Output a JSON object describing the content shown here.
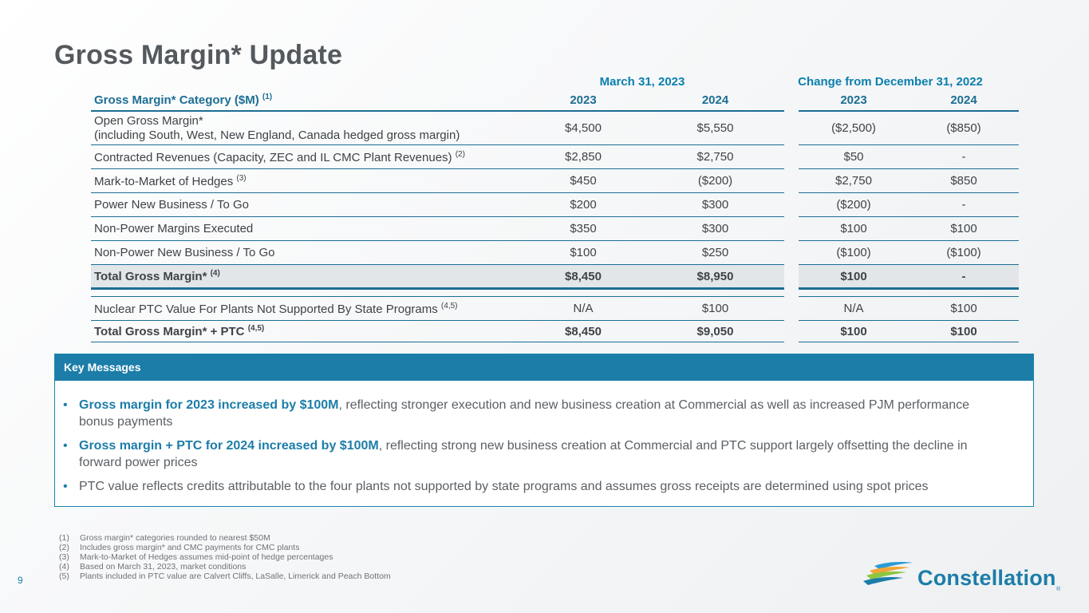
{
  "page": {
    "title": "Gross Margin* Update",
    "page_number": "9"
  },
  "table": {
    "group_headers": {
      "march": "March 31, 2023",
      "change": "Change from December 31, 2022"
    },
    "header": {
      "category": "Gross Margin* Category ($M)",
      "category_sup": "(1)",
      "y1": "2023",
      "y2": "2024",
      "y3": "2023",
      "y4": "2024"
    },
    "rows": [
      {
        "label": "Open Gross Margin*",
        "label2": "(including South, West, New England, Canada hedged gross margin)",
        "sup": "",
        "v1": "$4,500",
        "v2": "$5,550",
        "v3": "($2,500)",
        "v4": "($850)"
      },
      {
        "label": "Contracted Revenues (Capacity, ZEC and IL CMC Plant Revenues)",
        "sup": "(2)",
        "v1": "$2,850",
        "v2": "$2,750",
        "v3": "$50",
        "v4": "-"
      },
      {
        "label": "Mark-to-Market of Hedges",
        "sup": "(3)",
        "v1": "$450",
        "v2": "($200)",
        "v3": "$2,750",
        "v4": "$850"
      },
      {
        "label": "Power New Business / To Go",
        "sup": "",
        "v1": "$200",
        "v2": "$300",
        "v3": "($200)",
        "v4": "-"
      },
      {
        "label": "Non-Power Margins Executed",
        "sup": "",
        "v1": "$350",
        "v2": "$300",
        "v3": "$100",
        "v4": "$100"
      },
      {
        "label": "Non-Power New Business / To Go",
        "sup": "",
        "v1": "$100",
        "v2": "$250",
        "v3": "($100)",
        "v4": "($100)"
      }
    ],
    "total": {
      "label": "Total Gross Margin*",
      "sup": "(4)",
      "v1": "$8,450",
      "v2": "$8,950",
      "v3": "$100",
      "v4": "-"
    },
    "ptc": {
      "label": "Nuclear PTC Value For Plants Not Supported By State Programs",
      "sup": "(4,5)",
      "v1": "N/A",
      "v2": "$100",
      "v3": "N/A",
      "v4": "$100"
    },
    "total_ptc": {
      "label": "Total Gross Margin* + PTC",
      "sup": "(4,5)",
      "v1": "$8,450",
      "v2": "$9,050",
      "v3": "$100",
      "v4": "$100"
    }
  },
  "key_messages": {
    "title": "Key Messages",
    "bullet": "•",
    "items": [
      {
        "highlight": "Gross margin for 2023 increased by $100M",
        "text": ", reflecting stronger execution and new business creation at Commercial as well as increased PJM performance bonus payments"
      },
      {
        "highlight": "Gross margin + PTC for 2024 increased by $100M",
        "text": ", reflecting strong new business creation at Commercial and PTC support largely offsetting the decline in forward power prices"
      },
      {
        "highlight": "",
        "text": "PTC value reflects credits attributable to the four plants not supported by state programs and assumes gross receipts are determined using spot prices"
      }
    ]
  },
  "footnotes": [
    {
      "n": "(1)",
      "text": "Gross margin* categories rounded to nearest $50M"
    },
    {
      "n": "(2)",
      "text": "Includes gross margin* and CMC payments for CMC plants"
    },
    {
      "n": "(3)",
      "text": "Mark-to-Market of Hedges assumes mid-point of hedge percentages"
    },
    {
      "n": "(4)",
      "text": "Based on March 31, 2023, market conditions"
    },
    {
      "n": "(5)",
      "text": "Plants included in PTC value are Calvert Cliffs, LaSalle, Limerick and Peach Bottom"
    }
  ],
  "logo": {
    "text": "Constellation",
    "reg": "®",
    "icon": "constellation-swoosh-icon"
  },
  "colors": {
    "accent": "#1c7da8",
    "title": "#54595e"
  }
}
